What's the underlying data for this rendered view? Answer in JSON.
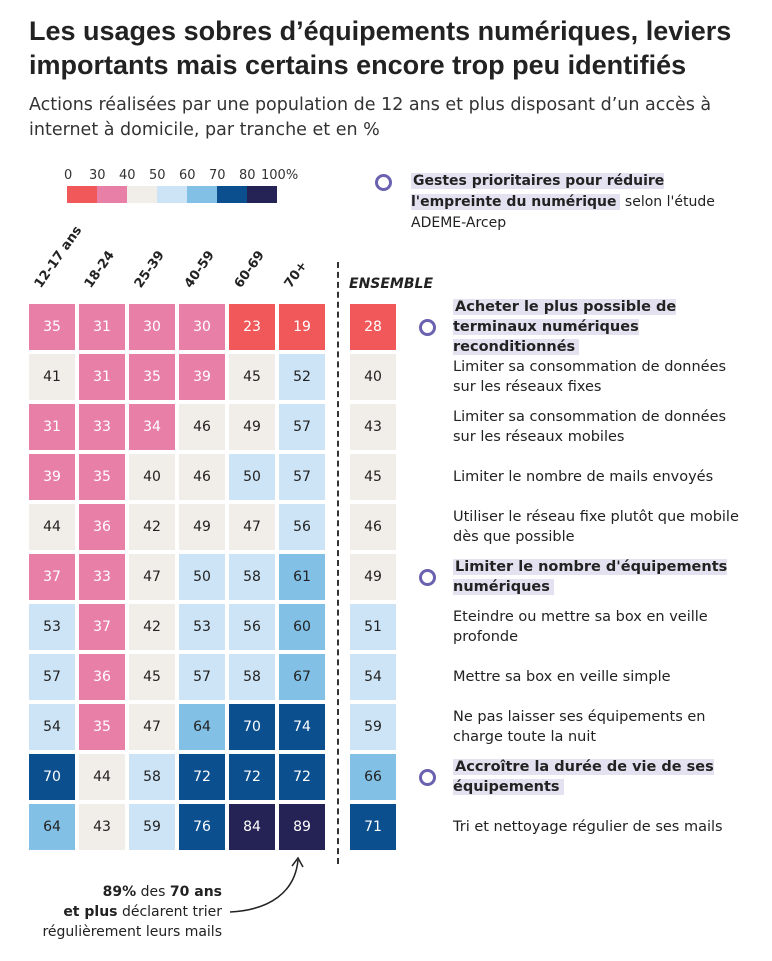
{
  "title": "Les usages sobres d’équipements numériques, leviers importants mais certains encore trop peu identifiés",
  "subtitle": "Actions réalisées par une population de 12 ans et plus disposant d’un accès à internet à domicile, par tranche et en %",
  "legend": {
    "ticks": [
      "0",
      "30",
      "40",
      "50",
      "60",
      "70",
      "80",
      "100%"
    ],
    "colors": [
      "#f0585a",
      "#e87fa6",
      "#f1ede8",
      "#cde4f6",
      "#82c0e6",
      "#0b4f8f",
      "#252355"
    ],
    "bins": [
      0,
      30,
      40,
      50,
      60,
      70,
      80,
      100
    ]
  },
  "priority_note": {
    "highlight": "Gestes prioritaires pour réduire l'empreinte du numérique",
    "rest": " selon l'étude ADEME-Arcep"
  },
  "chart_data": {
    "type": "heatmap",
    "columns": [
      "12-17 ans",
      "18-24",
      "25-39",
      "40-59",
      "60-69",
      "70+"
    ],
    "total_label": "ENSEMBLE",
    "rows": [
      {
        "label": "Acheter le plus possible de terminaux numériques reconditionnés",
        "priority": true,
        "values": [
          35,
          31,
          30,
          30,
          23,
          19
        ],
        "total": 28
      },
      {
        "label": "Limiter sa consommation de données sur les réseaux fixes",
        "priority": false,
        "values": [
          41,
          31,
          35,
          39,
          45,
          52
        ],
        "total": 40
      },
      {
        "label": "Limiter sa consommation de données sur les réseaux mobiles",
        "priority": false,
        "values": [
          31,
          33,
          34,
          46,
          49,
          57
        ],
        "total": 43
      },
      {
        "label": "Limiter le nombre de mails envoyés",
        "priority": false,
        "values": [
          39,
          35,
          40,
          46,
          50,
          57
        ],
        "total": 45
      },
      {
        "label": "Utiliser le réseau fixe plutôt que mobile dès que possible",
        "priority": false,
        "values": [
          44,
          36,
          42,
          49,
          47,
          56
        ],
        "total": 46
      },
      {
        "label": "Limiter le nombre d'équipements numériques",
        "priority": true,
        "values": [
          37,
          33,
          47,
          50,
          58,
          61
        ],
        "total": 49
      },
      {
        "label": "Eteindre ou mettre sa box en veille profonde",
        "priority": false,
        "values": [
          53,
          37,
          42,
          53,
          56,
          60
        ],
        "total": 51
      },
      {
        "label": "Mettre sa box en veille simple",
        "priority": false,
        "values": [
          57,
          36,
          45,
          57,
          58,
          67
        ],
        "total": 54
      },
      {
        "label": "Ne pas laisser ses équipements en charge toute la nuit",
        "priority": false,
        "values": [
          54,
          35,
          47,
          64,
          70,
          74
        ],
        "total": 59
      },
      {
        "label": "Accroître la durée de vie de ses équipements",
        "priority": true,
        "values": [
          70,
          44,
          58,
          72,
          72,
          72
        ],
        "total": 66
      },
      {
        "label": "Tri et nettoyage régulier de ses mails",
        "priority": false,
        "values": [
          64,
          43,
          59,
          76,
          84,
          89
        ],
        "total": 71
      }
    ]
  },
  "annotation": {
    "b1": "89%",
    "t1": " des ",
    "b2": "70 ans",
    "b3": "et plus",
    "t2": " déclarent trier régulièrement leurs mails"
  }
}
